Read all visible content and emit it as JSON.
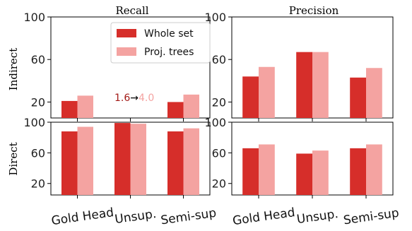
{
  "series_colors": {
    "whole_set": "#d62e2a",
    "proj_trees": "#f4a3a1"
  },
  "column_titles": [
    "Recall",
    "Precision"
  ],
  "row_labels": [
    "Indirect",
    "Direct"
  ],
  "legend": {
    "whole_set": "Whole set",
    "proj_trees": "Proj. trees",
    "placement": "top-right of first panel"
  },
  "annotation": {
    "before": "1.6",
    "arrow": "→",
    "after": "4.0"
  },
  "chart_data": [
    {
      "type": "bar",
      "column": "Recall",
      "row": "Indirect",
      "categories": [
        "Gold Head",
        "Unsup.",
        "Semi-sup"
      ],
      "series": [
        {
          "name": "Whole set",
          "values": [
            21,
            1.6,
            20
          ]
        },
        {
          "name": "Proj. trees",
          "values": [
            26,
            4.0,
            27
          ]
        }
      ],
      "ylim": [
        5,
        100
      ],
      "yticks": [
        "20",
        "60",
        "100"
      ],
      "grid": false
    },
    {
      "type": "bar",
      "column": "Precision",
      "row": "Indirect",
      "categories": [
        "Gold Head",
        "Unsup.",
        "Semi-sup"
      ],
      "series": [
        {
          "name": "Whole set",
          "values": [
            44,
            67,
            43
          ]
        },
        {
          "name": "Proj. trees",
          "values": [
            53,
            67,
            52
          ]
        }
      ],
      "ylim": [
        5,
        100
      ],
      "yticks": [
        "20",
        "60",
        "100"
      ],
      "grid": false
    },
    {
      "type": "bar",
      "column": "Recall",
      "row": "Direct",
      "categories": [
        "Gold Head",
        "Unsup.",
        "Semi-sup"
      ],
      "series": [
        {
          "name": "Whole set",
          "values": [
            88,
            99,
            88
          ]
        },
        {
          "name": "Proj. trees",
          "values": [
            94,
            98,
            92
          ]
        }
      ],
      "ylim": [
        5,
        100
      ],
      "yticks": [
        "20",
        "60",
        "100"
      ],
      "grid": false
    },
    {
      "type": "bar",
      "column": "Precision",
      "row": "Direct",
      "categories": [
        "Gold Head",
        "Unsup.",
        "Semi-sup"
      ],
      "series": [
        {
          "name": "Whole set",
          "values": [
            66,
            59,
            66
          ]
        },
        {
          "name": "Proj. trees",
          "values": [
            71,
            63,
            71
          ]
        }
      ],
      "ylim": [
        5,
        100
      ],
      "yticks": [
        "20",
        "60",
        "100"
      ],
      "grid": false
    }
  ]
}
